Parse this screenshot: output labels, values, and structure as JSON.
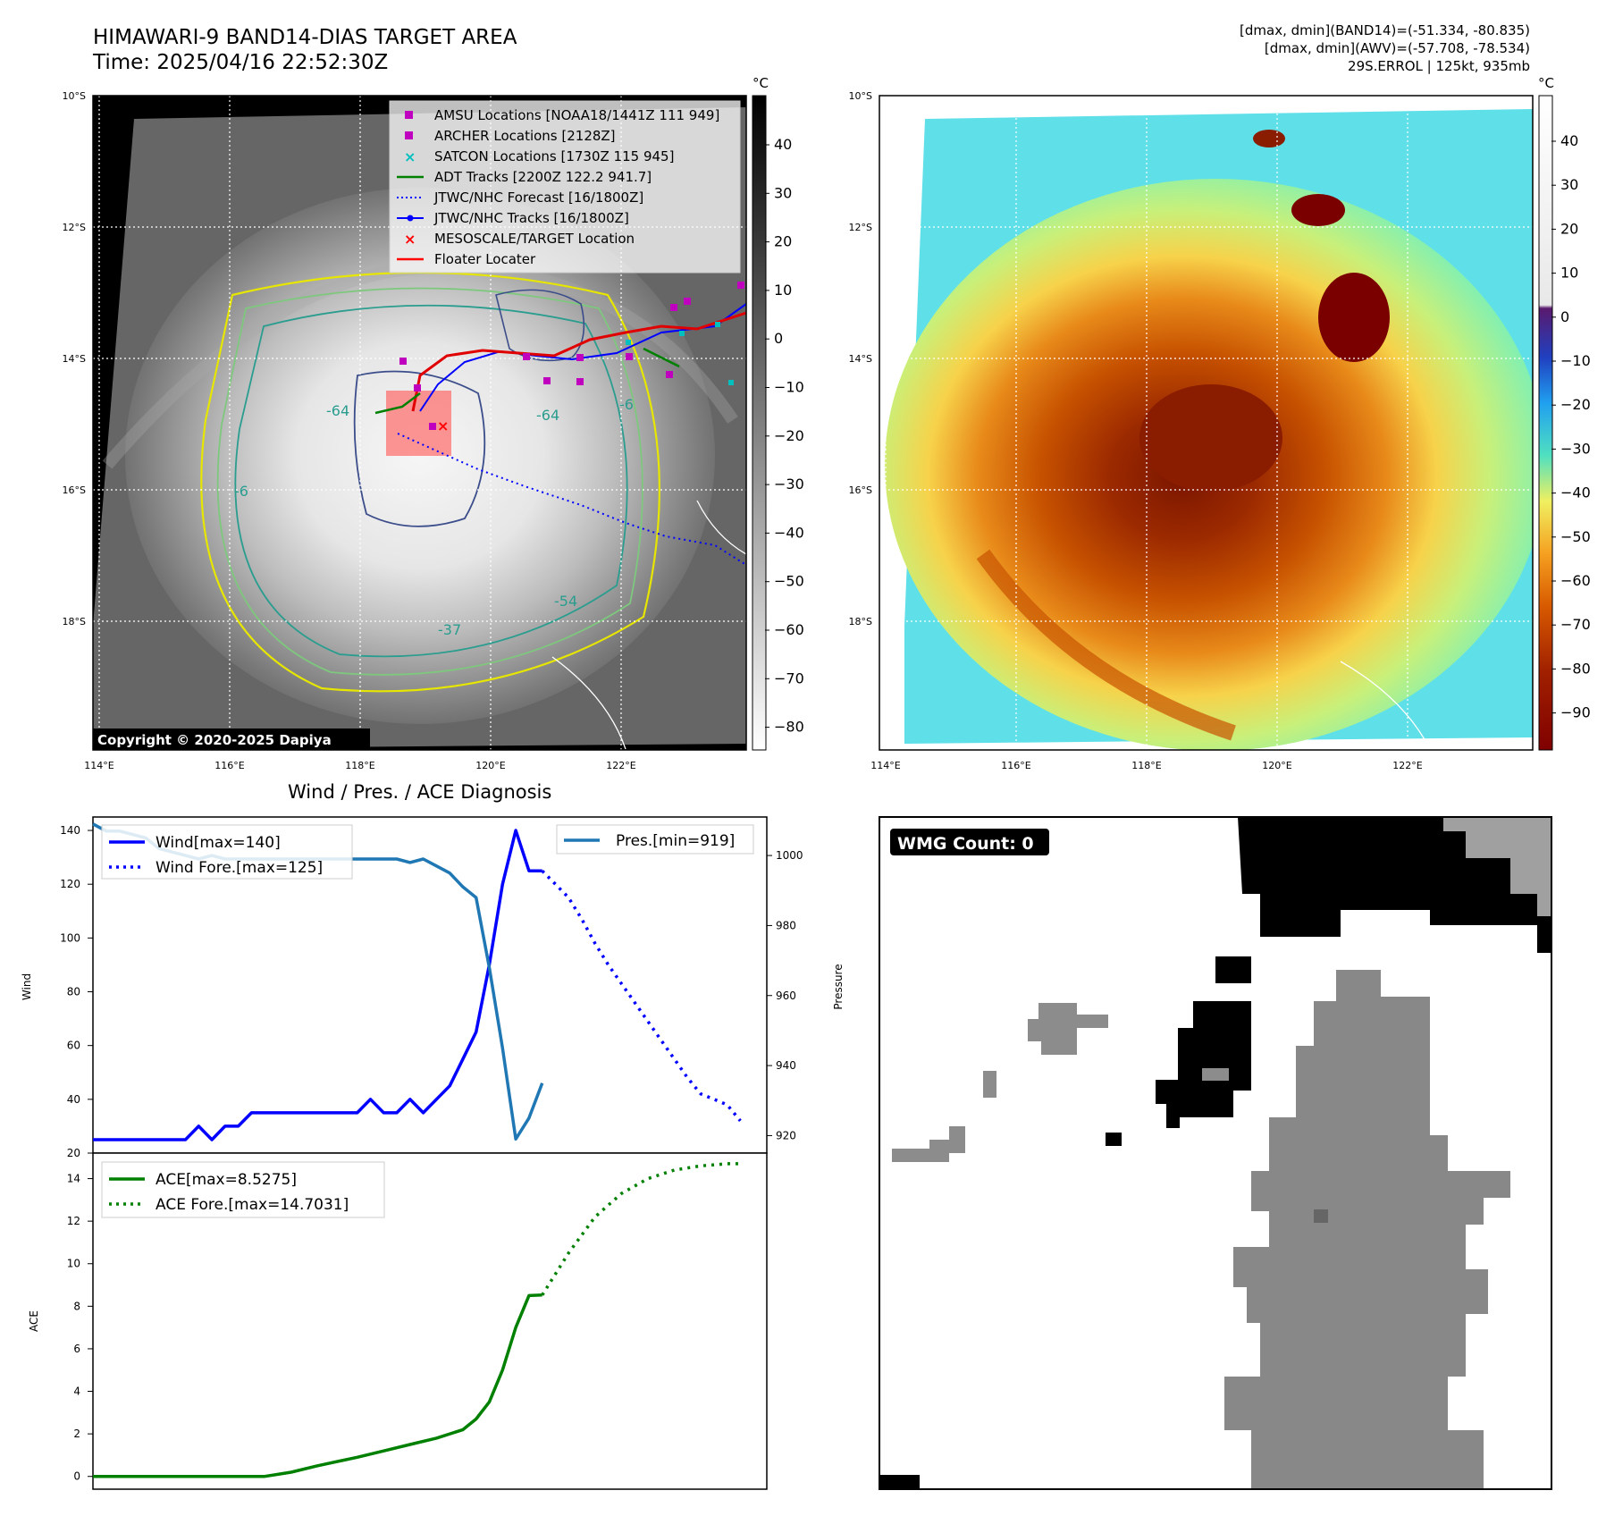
{
  "header": {
    "title_line1": "HIMAWARI-9 BAND14-DIAS TARGET AREA",
    "title_line2": "Time: 2025/04/16 22:52:30Z",
    "info_line1": "[dmax, dmin](BAND14)=(-51.334, -80.835)",
    "info_line2": "[dmax, dmin](AWV)=(-57.708, -78.534)",
    "info_line3": "29S.ERROL | 125kt, 935mb"
  },
  "map_axes": {
    "lat_labels": [
      "10°S",
      "12°S",
      "14°S",
      "16°S",
      "18°S"
    ],
    "lon_labels": [
      "114°E",
      "116°E",
      "118°E",
      "120°E",
      "122°E"
    ],
    "copyright": "Copyright © 2020-2025 Dapiya",
    "contour_labels": [
      "-64",
      "-64",
      "-54",
      "-37",
      "-6",
      "-6"
    ]
  },
  "legend_map": [
    {
      "label": "AMSU Locations [NOAA18/1441Z 111 949]",
      "color": "#bf00bf"
    },
    {
      "label": "ARCHER Locations [2128Z]",
      "color": "#bf00bf"
    },
    {
      "label": "SATCON Locations [1730Z 115 945]",
      "color": "#00bfbf"
    },
    {
      "label": "ADT Tracks [2200Z 122.2 941.7]",
      "color": "#008000"
    },
    {
      "label": "JTWC/NHC Forecast [16/1800Z]",
      "color": "#0000ff"
    },
    {
      "label": "JTWC/NHC Tracks [16/1800Z]",
      "color": "#0000ff"
    },
    {
      "label": "MESOSCALE/TARGET Location",
      "color": "#ff0000"
    },
    {
      "label": "Floater Locater",
      "color": "#ff0000"
    }
  ],
  "colorbar_left": {
    "unit": "°C",
    "ticks": [
      "40",
      "30",
      "20",
      "10",
      "0",
      "−10",
      "−20",
      "−30",
      "−40",
      "−50",
      "−60",
      "−70",
      "−80"
    ]
  },
  "colorbar_right": {
    "unit": "°C",
    "ticks": [
      "40",
      "30",
      "20",
      "10",
      "0",
      "−10",
      "−20",
      "−30",
      "−40",
      "−50",
      "−60",
      "−70",
      "−80",
      "−90"
    ]
  },
  "wmg": {
    "label": "WMG Count: 0"
  },
  "diagnosis_title": "Wind / Pres. / ACE Diagnosis",
  "chart_data": [
    {
      "type": "line",
      "title": "Wind / Pres. / ACE Diagnosis",
      "ylabel": "Wind",
      "ylim": [
        20,
        145
      ],
      "yticks": [
        "20",
        "40",
        "60",
        "80",
        "100",
        "120",
        "140"
      ],
      "legend_entries": [
        "Wind[max=140]",
        "Wind Fore.[max=125]"
      ],
      "series": [
        {
          "name": "Wind[max=140]",
          "style": "solid",
          "color": "#0000ff",
          "x": [
            0,
            1,
            2,
            3,
            4,
            5,
            6,
            7,
            8,
            9,
            10,
            11,
            12,
            13,
            14,
            15,
            16,
            17,
            18,
            19,
            20,
            21,
            22,
            23,
            24,
            25,
            26,
            27,
            28,
            29,
            30,
            31,
            32,
            33,
            34
          ],
          "values": [
            25,
            25,
            25,
            25,
            25,
            25,
            25,
            25,
            30,
            25,
            30,
            30,
            35,
            35,
            35,
            35,
            35,
            35,
            35,
            35,
            35,
            40,
            35,
            35,
            40,
            35,
            40,
            45,
            55,
            65,
            90,
            120,
            140,
            125,
            125
          ]
        },
        {
          "name": "Wind Fore.[max=125]",
          "style": "dotted",
          "color": "#0000ff",
          "x": [
            34,
            35,
            36,
            37,
            38,
            39,
            40,
            41,
            42,
            43,
            44,
            45,
            46,
            47,
            48,
            49
          ],
          "values": [
            125,
            120,
            115,
            107,
            98,
            90,
            83,
            76,
            69,
            62,
            55,
            48,
            42,
            40,
            38,
            32
          ]
        }
      ]
    },
    {
      "type": "line",
      "ylabel": "Pressure",
      "ylim": [
        915,
        1011
      ],
      "yticks": [
        "920",
        "940",
        "960",
        "980",
        "1000"
      ],
      "legend_entries": [
        "Pres.[min=919]"
      ],
      "series": [
        {
          "name": "Pres.[min=919]",
          "style": "solid",
          "color": "#1f77b4",
          "x": [
            0,
            1,
            2,
            3,
            4,
            5,
            6,
            7,
            8,
            9,
            10,
            11,
            12,
            13,
            14,
            15,
            16,
            17,
            18,
            19,
            20,
            21,
            22,
            23,
            24,
            25,
            26,
            27,
            28,
            29,
            30,
            31,
            32,
            33,
            34
          ],
          "values": [
            1009,
            1007,
            1007,
            1006,
            1005,
            1002,
            1001,
            1000,
            999,
            1000,
            999,
            999,
            999,
            999,
            999,
            999,
            999,
            999,
            999,
            999,
            999,
            999,
            999,
            999,
            998,
            999,
            997,
            995,
            991,
            988,
            968,
            945,
            919,
            925,
            935
          ]
        }
      ]
    },
    {
      "type": "line",
      "ylabel": "ACE",
      "ylim": [
        -0.6,
        15.2
      ],
      "yticks": [
        "0",
        "2",
        "4",
        "6",
        "8",
        "10",
        "12",
        "14"
      ],
      "legend_entries": [
        "ACE[max=8.5275]",
        "ACE Fore.[max=14.7031]"
      ],
      "series": [
        {
          "name": "ACE[max=8.5275]",
          "style": "solid",
          "color": "#008000",
          "x": [
            0,
            5,
            10,
            13,
            15,
            17,
            20,
            22,
            24,
            26,
            28,
            29,
            30,
            31,
            32,
            33,
            34
          ],
          "values": [
            0,
            0,
            0,
            0,
            0.2,
            0.5,
            0.9,
            1.2,
            1.5,
            1.8,
            2.2,
            2.7,
            3.5,
            5,
            7,
            8.5,
            8.5275
          ]
        },
        {
          "name": "ACE Fore.[max=14.7031]",
          "style": "dotted",
          "color": "#008000",
          "x": [
            34,
            36,
            38,
            40,
            42,
            44,
            46,
            48,
            49
          ],
          "values": [
            8.5275,
            10.5,
            12.2,
            13.3,
            14.0,
            14.4,
            14.6,
            14.7,
            14.7031
          ]
        }
      ]
    }
  ]
}
